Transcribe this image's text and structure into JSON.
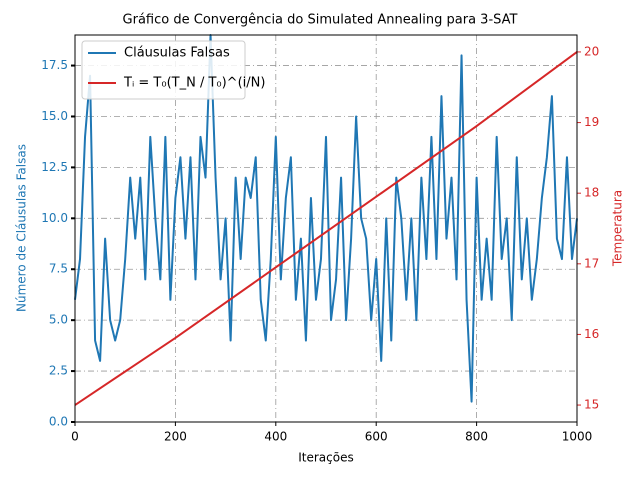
{
  "chart_data": {
    "type": "line",
    "title": "Gráfico de Convergência do Simulated Annealing para 3-SAT",
    "x_label": "Iterações",
    "y_label": "Número de Cláusulas Falsas",
    "y2_label": "Temperatura",
    "xlim": [
      0,
      1000
    ],
    "xticks": [
      0,
      200,
      400,
      600,
      800,
      1000
    ],
    "ylim": [
      0,
      19
    ],
    "yticks": [
      {
        "value": 0,
        "label": "0.0"
      },
      2.5,
      {
        "value": 5,
        "label": "5.0"
      },
      7.5,
      {
        "value": 10,
        "label": "10.0"
      },
      12.5,
      {
        "value": 15,
        "label": "15.0"
      },
      17.5
    ],
    "y2lim": [
      14.76,
      20.24
    ],
    "y2ticks": [
      15,
      16,
      17,
      18,
      19,
      20
    ],
    "grid": true,
    "legend": "upper left",
    "series": [
      {
        "name": "Cláusulas Falsas",
        "color": "#1f77b4",
        "x": [
          0,
          10,
          20,
          30,
          40,
          50,
          60,
          70,
          80,
          90,
          100,
          110,
          120,
          130,
          140,
          150,
          160,
          170,
          180,
          190,
          200,
          210,
          220,
          230,
          240,
          250,
          260,
          270,
          280,
          290,
          300,
          310,
          320,
          330,
          340,
          350,
          360,
          370,
          380,
          390,
          400,
          410,
          420,
          430,
          440,
          450,
          460,
          470,
          480,
          490,
          500,
          510,
          520,
          530,
          540,
          550,
          560,
          570,
          580,
          590,
          600,
          610,
          620,
          630,
          640,
          650,
          660,
          670,
          680,
          690,
          700,
          710,
          720,
          730,
          740,
          750,
          760,
          770,
          780,
          790,
          800,
          810,
          820,
          830,
          840,
          850,
          860,
          870,
          880,
          890,
          900,
          910,
          920,
          930,
          940,
          950,
          960,
          970,
          980,
          990,
          1000
        ],
        "values": [
          6,
          8,
          14,
          17,
          4,
          3,
          9,
          5,
          4,
          5,
          8,
          12,
          9,
          12,
          7,
          14,
          10,
          7,
          14,
          6,
          11,
          13,
          9,
          13,
          7,
          14,
          12,
          19,
          12,
          7,
          10,
          4,
          12,
          8,
          12,
          11,
          13,
          6,
          4,
          8,
          14,
          7,
          11,
          13,
          6,
          9,
          4,
          11,
          6,
          8,
          14,
          5,
          7,
          12,
          5,
          9,
          15,
          10,
          9,
          5,
          8,
          3,
          10,
          4,
          12,
          10,
          6,
          10,
          5,
          12,
          8,
          14,
          8,
          16,
          9,
          12,
          7,
          18,
          6,
          1,
          12,
          6,
          9,
          6,
          14,
          8,
          10,
          5,
          13,
          7,
          10,
          6,
          8,
          11,
          13,
          16,
          9,
          8,
          13,
          8,
          10
        ]
      },
      {
        "name": "Tᵢ = T₀(T_N / T₀)^(i/N)",
        "color": "#d62728",
        "axis": "y2",
        "x": [
          0,
          200,
          400,
          600,
          800,
          1000
        ],
        "values": [
          15.0,
          15.95,
          16.95,
          17.95,
          18.95,
          20.0
        ]
      }
    ]
  }
}
